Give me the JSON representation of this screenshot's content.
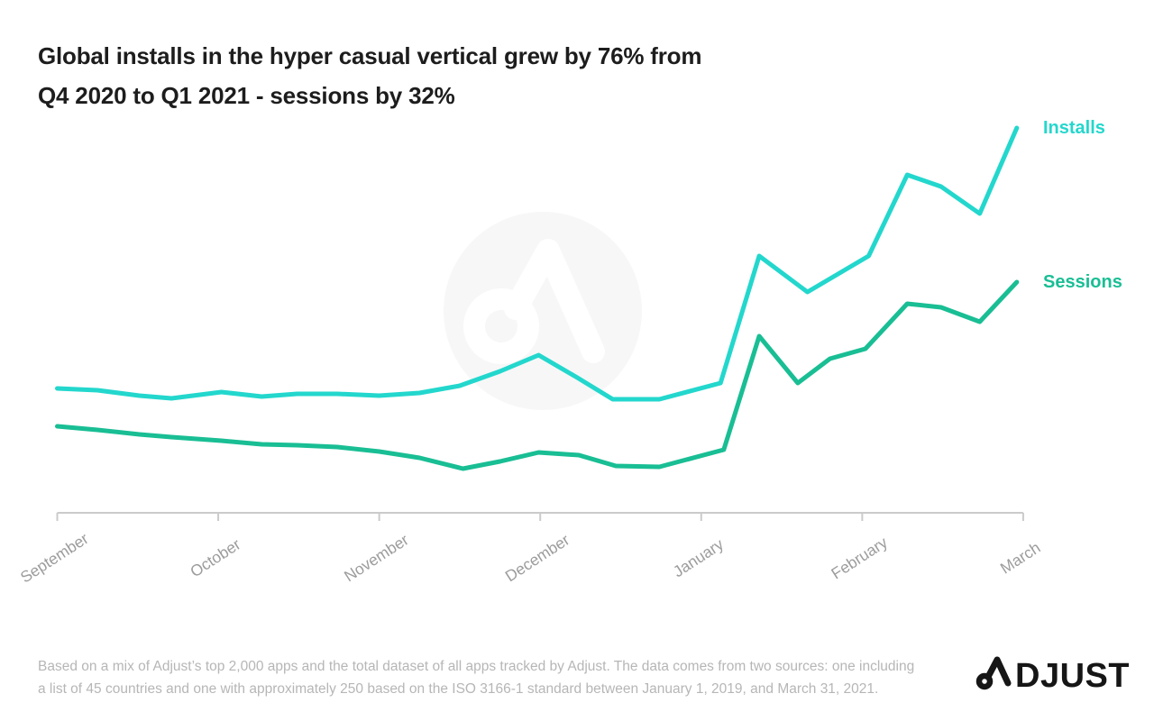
{
  "title": {
    "line1": "Global installs in the hyper casual vertical grew by 76% from",
    "line2": "Q4 2020 to Q1 2021 - sessions by 32%"
  },
  "legend": {
    "installs_label": "Installs",
    "sessions_label": "Sessions"
  },
  "chart_data": {
    "type": "line",
    "title": "Global installs in the hyper casual vertical grew by 76% from Q4 2020 to Q1 2021 - sessions by 32%",
    "categories": [
      "September",
      "October",
      "November",
      "December",
      "January",
      "February",
      "March"
    ],
    "xlabel": "",
    "ylabel": "",
    "x_unit": "months after September 1 (fractional position, roughly weekly samples)",
    "y_unit": "relative volume index (y-axis is unlabeled in the chart)",
    "ylim": [
      0,
      450
    ],
    "grid": false,
    "legend_position": "right of line ends",
    "axis_color": "#cbcbcb",
    "tick_label_color": "#9c9c9c",
    "series": [
      {
        "name": "Installs",
        "color": "#23d7cd",
        "x": [
          0.0,
          0.25,
          0.51,
          0.71,
          1.02,
          1.27,
          1.49,
          1.74,
          2.0,
          2.25,
          2.5,
          2.75,
          2.99,
          3.23,
          3.45,
          3.74,
          4.12,
          4.36,
          4.66,
          5.04,
          5.28,
          5.49,
          5.73,
          5.96
        ],
        "values": [
          138,
          136,
          130,
          127,
          134,
          129,
          132,
          132,
          130,
          133,
          141,
          157,
          175,
          150,
          126,
          126,
          144,
          285,
          245,
          285,
          375,
          362,
          332,
          427
        ]
      },
      {
        "name": "Sessions",
        "color": "#19be94",
        "x": [
          0.0,
          0.25,
          0.51,
          0.71,
          1.02,
          1.27,
          1.49,
          1.74,
          2.0,
          2.25,
          2.52,
          2.75,
          2.99,
          3.24,
          3.47,
          3.74,
          4.14,
          4.36,
          4.6,
          4.8,
          5.02,
          5.28,
          5.49,
          5.73,
          5.96
        ],
        "values": [
          96,
          92,
          87,
          84,
          80,
          76,
          75,
          73,
          68,
          61,
          49,
          57,
          67,
          64,
          52,
          51,
          70,
          196,
          144,
          171,
          182,
          232,
          228,
          212,
          256
        ]
      }
    ]
  },
  "watermark": {
    "color": "#f7f7f7",
    "glyph": "adjust-logo"
  },
  "footnote": {
    "line1": "Based on a mix of Adjust’s top 2,000 apps and the total dataset of all apps tracked by Adjust. The data comes from two sources: one including",
    "line2": "a list of 45 countries and one with approximately 250 based on the ISO 3166-1 standard between January 1, 2019, and March 31, 2021."
  },
  "brand": {
    "name": "ADJUST",
    "wordmark_rest": "DJUST"
  }
}
